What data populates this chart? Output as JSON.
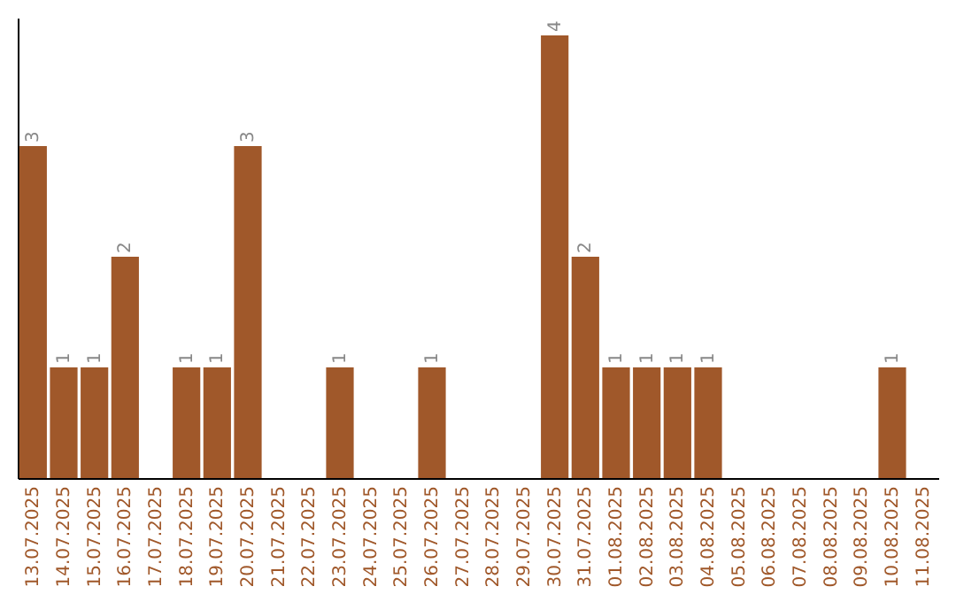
{
  "chart_data": {
    "type": "bar",
    "categories": [
      "13.07.2025",
      "14.07.2025",
      "15.07.2025",
      "16.07.2025",
      "17.07.2025",
      "18.07.2025",
      "19.07.2025",
      "20.07.2025",
      "21.07.2025",
      "22.07.2025",
      "23.07.2025",
      "24.07.2025",
      "25.07.2025",
      "26.07.2025",
      "27.07.2025",
      "28.07.2025",
      "29.07.2025",
      "30.07.2025",
      "31.07.2025",
      "01.08.2025",
      "02.08.2025",
      "03.08.2025",
      "04.08.2025",
      "05.08.2025",
      "06.08.2025",
      "07.08.2025",
      "08.08.2025",
      "09.08.2025",
      "10.08.2025",
      "11.08.2025"
    ],
    "values": [
      3,
      1,
      1,
      2,
      0,
      1,
      1,
      3,
      0,
      0,
      1,
      0,
      0,
      1,
      0,
      0,
      0,
      4,
      2,
      1,
      1,
      1,
      1,
      0,
      0,
      0,
      0,
      0,
      1,
      0
    ],
    "value_labels": [
      "3",
      "1",
      "1",
      "2",
      null,
      "1",
      "1",
      "3",
      null,
      null,
      "1",
      null,
      null,
      "1",
      null,
      null,
      null,
      "4",
      "2",
      "1",
      "1",
      "1",
      "1",
      null,
      null,
      null,
      null,
      null,
      "1",
      null
    ],
    "color": "#a0582a",
    "tick_labels": "x"
  }
}
